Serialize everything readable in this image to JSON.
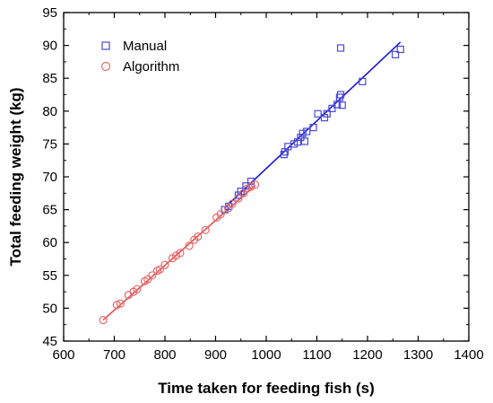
{
  "chart_data": {
    "type": "scatter",
    "xlabel": "Time taken for feeding fish (s)",
    "ylabel": "Total feeding weight (kg)",
    "xlim": [
      600,
      1400
    ],
    "ylim": [
      45,
      95
    ],
    "xticks": [
      600,
      700,
      800,
      900,
      1000,
      1100,
      1200,
      1300,
      1400
    ],
    "yticks": [
      45,
      50,
      55,
      60,
      65,
      70,
      75,
      80,
      85,
      90,
      95
    ],
    "grid": false,
    "legend_position": "top-left",
    "series": [
      {
        "name": "Manual",
        "marker": "square",
        "color": "#4a4ad6",
        "fit_line_color": "#1a1ad6",
        "fit_line": [
          [
            918,
            65.3
          ],
          [
            1265,
            90.5
          ]
        ],
        "points": [
          [
            918,
            65.0
          ],
          [
            926,
            65.5
          ],
          [
            945,
            67.2
          ],
          [
            950,
            67.8
          ],
          [
            960,
            68.6
          ],
          [
            970,
            69.3
          ],
          [
            1035,
            73.4
          ],
          [
            1037,
            73.8
          ],
          [
            1043,
            74.6
          ],
          [
            1055,
            75.0
          ],
          [
            1062,
            75.3
          ],
          [
            1068,
            76.0
          ],
          [
            1072,
            76.6
          ],
          [
            1076,
            75.4
          ],
          [
            1080,
            76.9
          ],
          [
            1093,
            77.5
          ],
          [
            1102,
            79.6
          ],
          [
            1115,
            79.0
          ],
          [
            1120,
            79.6
          ],
          [
            1130,
            80.4
          ],
          [
            1140,
            81.0
          ],
          [
            1145,
            82.1
          ],
          [
            1147,
            82.5
          ],
          [
            1150,
            80.9
          ],
          [
            1147,
            89.6
          ],
          [
            1190,
            84.5
          ],
          [
            1255,
            88.6
          ],
          [
            1265,
            89.4
          ]
        ]
      },
      {
        "name": "Algorithm",
        "marker": "circle",
        "color": "#e46a6a",
        "fit_line_color": "#e05050",
        "fit_line": [
          [
            678,
            48.2
          ],
          [
            978,
            68.7
          ]
        ],
        "points": [
          [
            678,
            48.2
          ],
          [
            705,
            50.5
          ],
          [
            712,
            50.7
          ],
          [
            728,
            52.0
          ],
          [
            738,
            52.5
          ],
          [
            745,
            52.9
          ],
          [
            760,
            54.1
          ],
          [
            766,
            54.4
          ],
          [
            775,
            55.0
          ],
          [
            785,
            55.7
          ],
          [
            790,
            55.9
          ],
          [
            800,
            56.6
          ],
          [
            815,
            57.6
          ],
          [
            822,
            58.0
          ],
          [
            830,
            58.4
          ],
          [
            848,
            59.5
          ],
          [
            858,
            60.4
          ],
          [
            865,
            60.9
          ],
          [
            880,
            61.9
          ],
          [
            902,
            63.8
          ],
          [
            910,
            64.3
          ],
          [
            925,
            65.2
          ],
          [
            933,
            65.9
          ],
          [
            945,
            66.7
          ],
          [
            955,
            67.5
          ],
          [
            962,
            68.2
          ],
          [
            970,
            68.5
          ],
          [
            978,
            68.8
          ]
        ]
      }
    ]
  }
}
